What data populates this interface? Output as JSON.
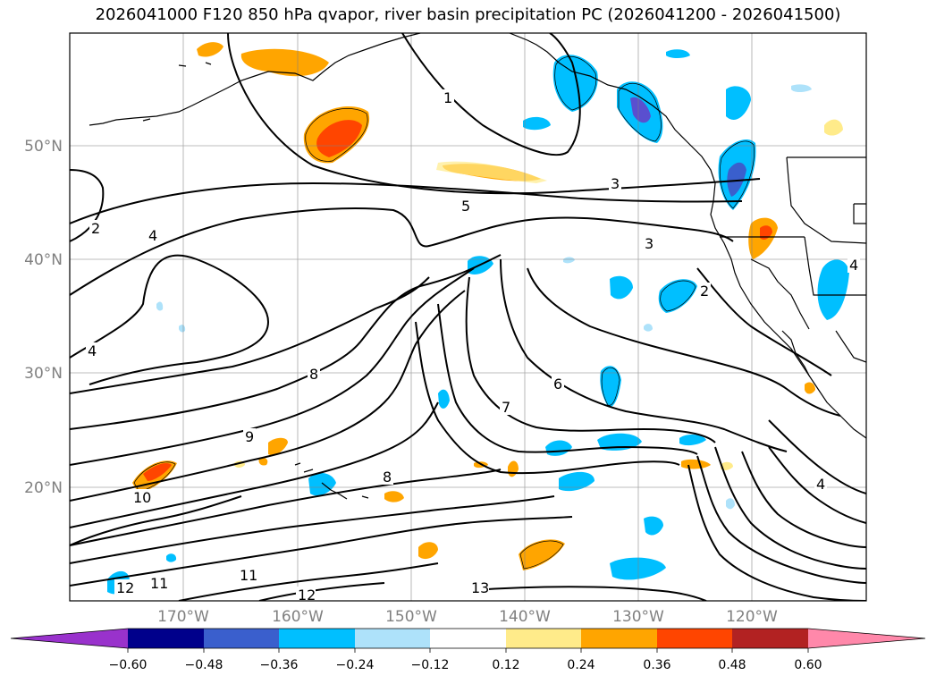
{
  "title": "2026041000 F120 850 hPa qvapor, river basin precipitation PC (2026041200 - 2026041500)",
  "lon_labels": [
    "170°W",
    "160°W",
    "150°W",
    "140°W",
    "130°W",
    "120°W"
  ],
  "lat_labels": [
    "50°N",
    "40°N",
    "30°N",
    "20°N"
  ],
  "contour_labels": [
    "1",
    "2",
    "3",
    "4",
    "5",
    "6",
    "7",
    "8",
    "9",
    "10",
    "11",
    "12",
    "13"
  ],
  "colorbar": {
    "ticks": [
      "−0.60",
      "−0.48",
      "−0.36",
      "−0.24",
      "−0.12",
      "0.12",
      "0.24",
      "0.36",
      "0.48",
      "0.60"
    ],
    "colors": [
      "#9932cc",
      "#00008b",
      "#3a5fcd",
      "#00bfff",
      "#aee2fa",
      "#ffffff",
      "#ffeb8a",
      "#ffa500",
      "#ff4500",
      "#b22222",
      "#ff88aa"
    ]
  },
  "palette": {
    "blue_dark": "#3a5fcd",
    "blue": "#00bfff",
    "blue_light": "#aee2fa",
    "purple": "#5a4fcf",
    "yellow": "#ffeb8a",
    "orange": "#ffa500",
    "red": "#ff4500"
  }
}
